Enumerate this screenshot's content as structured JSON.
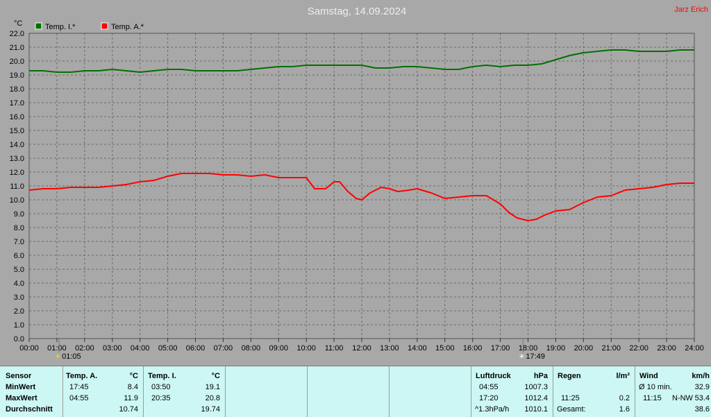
{
  "header": {
    "title": "Samstag, 14.09.2024",
    "author": "Jarz Erich",
    "unit": "°C"
  },
  "colors": {
    "inner": "#007000",
    "outer": "#ff0000",
    "bg": "#a8a8a8",
    "table": "#ccf7f4"
  },
  "chart_data": {
    "type": "line",
    "title": "Samstag, 14.09.2024",
    "ylabel": "°C",
    "ylim": [
      0,
      22
    ],
    "xlim": [
      0,
      24
    ],
    "grid": true,
    "legend_position": "top-left",
    "xticks": [
      "00:00",
      "01:00",
      "02:00",
      "03:00",
      "04:00",
      "05:00",
      "06:00",
      "07:00",
      "08:00",
      "09:00",
      "10:00",
      "11:00",
      "12:00",
      "13:00",
      "14:00",
      "15:00",
      "16:00",
      "17:00",
      "18:00",
      "19:00",
      "20:00",
      "21:00",
      "22:00",
      "23:00",
      "24:00"
    ],
    "yticks": [
      "0.0",
      "1.0",
      "2.0",
      "3.0",
      "4.0",
      "5.0",
      "6.0",
      "7.0",
      "8.0",
      "9.0",
      "10.0",
      "11.0",
      "12.0",
      "13.0",
      "14.0",
      "15.0",
      "16.0",
      "17.0",
      "18.0",
      "19.0",
      "20.0",
      "21.0",
      "22.0"
    ],
    "markers": [
      {
        "label": "01:05",
        "hour": 1.08
      },
      {
        "label": "17:49",
        "hour": 17.82
      }
    ],
    "series": [
      {
        "name": "Temp. I.*",
        "color": "#007000",
        "x": [
          0,
          0.5,
          1,
          1.5,
          2,
          2.5,
          3,
          3.5,
          4,
          4.5,
          5,
          5.5,
          6,
          6.5,
          7,
          7.5,
          8,
          8.5,
          9,
          9.5,
          10,
          10.5,
          11,
          11.5,
          12,
          12.5,
          13,
          13.5,
          14,
          14.5,
          15,
          15.5,
          16,
          16.5,
          17,
          17.5,
          18,
          18.5,
          19,
          19.5,
          20,
          20.5,
          21,
          21.5,
          22,
          22.5,
          23,
          23.5,
          24
        ],
        "y": [
          19.3,
          19.3,
          19.2,
          19.2,
          19.3,
          19.3,
          19.4,
          19.3,
          19.2,
          19.3,
          19.4,
          19.4,
          19.3,
          19.3,
          19.3,
          19.3,
          19.4,
          19.5,
          19.6,
          19.6,
          19.7,
          19.7,
          19.7,
          19.7,
          19.7,
          19.5,
          19.5,
          19.6,
          19.6,
          19.5,
          19.4,
          19.4,
          19.6,
          19.7,
          19.6,
          19.7,
          19.7,
          19.8,
          20.1,
          20.4,
          20.6,
          20.7,
          20.8,
          20.8,
          20.7,
          20.7,
          20.7,
          20.8,
          20.8
        ]
      },
      {
        "name": "Temp. A.*",
        "color": "#ff0000",
        "x": [
          0,
          0.5,
          1,
          1.5,
          2,
          2.5,
          3,
          3.5,
          4,
          4.5,
          5,
          5.5,
          6,
          6.5,
          7,
          7.5,
          8,
          8.5,
          9,
          9.5,
          10,
          10.3,
          10.7,
          11,
          11.2,
          11.5,
          11.8,
          12,
          12.3,
          12.7,
          13,
          13.3,
          13.7,
          14,
          14.5,
          15,
          15.5,
          16,
          16.5,
          17,
          17.3,
          17.6,
          18,
          18.3,
          18.6,
          19,
          19.5,
          20,
          20.5,
          21,
          21.5,
          22,
          22.5,
          23,
          23.5,
          24
        ],
        "y": [
          10.7,
          10.8,
          10.8,
          10.9,
          10.9,
          10.9,
          11.0,
          11.1,
          11.3,
          11.4,
          11.7,
          11.9,
          11.9,
          11.9,
          11.8,
          11.8,
          11.7,
          11.8,
          11.6,
          11.6,
          11.6,
          10.8,
          10.8,
          11.3,
          11.3,
          10.6,
          10.1,
          10.0,
          10.5,
          10.9,
          10.8,
          10.6,
          10.7,
          10.8,
          10.5,
          10.1,
          10.2,
          10.3,
          10.3,
          9.7,
          9.1,
          8.7,
          8.5,
          8.6,
          8.9,
          9.2,
          9.3,
          9.8,
          10.2,
          10.3,
          10.7,
          10.8,
          10.9,
          11.1,
          11.2,
          11.2
        ]
      }
    ]
  },
  "table": {
    "col_sensor": {
      "header": "Sensor",
      "rows": [
        "MinWert",
        "MaxWert",
        "Durchschnitt"
      ]
    },
    "col_temp_a": {
      "header": "Temp. A.",
      "unit": "°C",
      "times": [
        "17:45",
        "04:55",
        ""
      ],
      "values": [
        "8.4",
        "11.9",
        "10.74"
      ]
    },
    "col_temp_i": {
      "header": "Temp. I.",
      "unit": "°C",
      "times": [
        "03:50",
        "20:35",
        ""
      ],
      "values": [
        "19.1",
        "20.8",
        "19.74"
      ]
    },
    "col_luftdruck": {
      "header": "Luftdruck",
      "unit": "hPa",
      "times": [
        "04:55",
        "17:20",
        "^1.3hPa/h"
      ],
      "values": [
        "1007.3",
        "1012.4",
        "1010.1"
      ]
    },
    "col_regen": {
      "header": "Regen",
      "unit": "l/m²",
      "times": [
        "",
        "11:25",
        "Gesamt:"
      ],
      "values": [
        "",
        "0.2",
        "1.6"
      ]
    },
    "col_wind": {
      "header": "Wind",
      "unit": "km/h",
      "times": [
        "Ø 10 min.",
        "11:15",
        ""
      ],
      "dirs": [
        "",
        "N-NW",
        ""
      ],
      "values": [
        "32.9",
        "53.4",
        "38.6"
      ]
    }
  }
}
